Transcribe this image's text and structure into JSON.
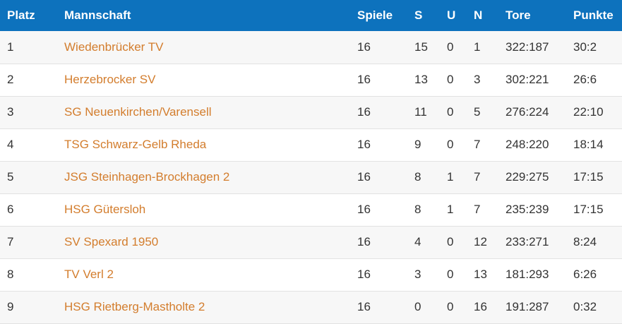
{
  "table": {
    "headers": {
      "platz": "Platz",
      "mannschaft": "Mannschaft",
      "spiele": "Spiele",
      "s": "S",
      "u": "U",
      "n": "N",
      "tore": "Tore",
      "punkte": "Punkte"
    },
    "rows": [
      {
        "platz": "1",
        "mannschaft": "Wiedenbrücker TV",
        "spiele": "16",
        "s": "15",
        "u": "0",
        "n": "1",
        "tore": "322:187",
        "punkte": "30:2"
      },
      {
        "platz": "2",
        "mannschaft": "Herzebrocker SV",
        "spiele": "16",
        "s": "13",
        "u": "0",
        "n": "3",
        "tore": "302:221",
        "punkte": "26:6"
      },
      {
        "platz": "3",
        "mannschaft": "SG Neuenkirchen/Varensell",
        "spiele": "16",
        "s": "11",
        "u": "0",
        "n": "5",
        "tore": "276:224",
        "punkte": "22:10"
      },
      {
        "platz": "4",
        "mannschaft": "TSG Schwarz-Gelb Rheda",
        "spiele": "16",
        "s": "9",
        "u": "0",
        "n": "7",
        "tore": "248:220",
        "punkte": "18:14"
      },
      {
        "platz": "5",
        "mannschaft": "JSG Steinhagen-Brockhagen 2",
        "spiele": "16",
        "s": "8",
        "u": "1",
        "n": "7",
        "tore": "229:275",
        "punkte": "17:15"
      },
      {
        "platz": "6",
        "mannschaft": "HSG Gütersloh",
        "spiele": "16",
        "s": "8",
        "u": "1",
        "n": "7",
        "tore": "235:239",
        "punkte": "17:15"
      },
      {
        "platz": "7",
        "mannschaft": "SV Spexard 1950",
        "spiele": "16",
        "s": "4",
        "u": "0",
        "n": "12",
        "tore": "233:271",
        "punkte": "8:24"
      },
      {
        "platz": "8",
        "mannschaft": "TV Verl 2",
        "spiele": "16",
        "s": "3",
        "u": "0",
        "n": "13",
        "tore": "181:293",
        "punkte": "6:26"
      },
      {
        "platz": "9",
        "mannschaft": "HSG Rietberg-Mastholte 2",
        "spiele": "16",
        "s": "0",
        "u": "0",
        "n": "16",
        "tore": "191:287",
        "punkte": "0:32"
      }
    ]
  },
  "colors": {
    "header_bg": "#0d72bd",
    "header_text": "#ffffff",
    "team_link": "#d37d2d",
    "cell_text": "#333333",
    "row_alt_bg": "#f7f7f7",
    "row_border": "#e2e2e2"
  }
}
